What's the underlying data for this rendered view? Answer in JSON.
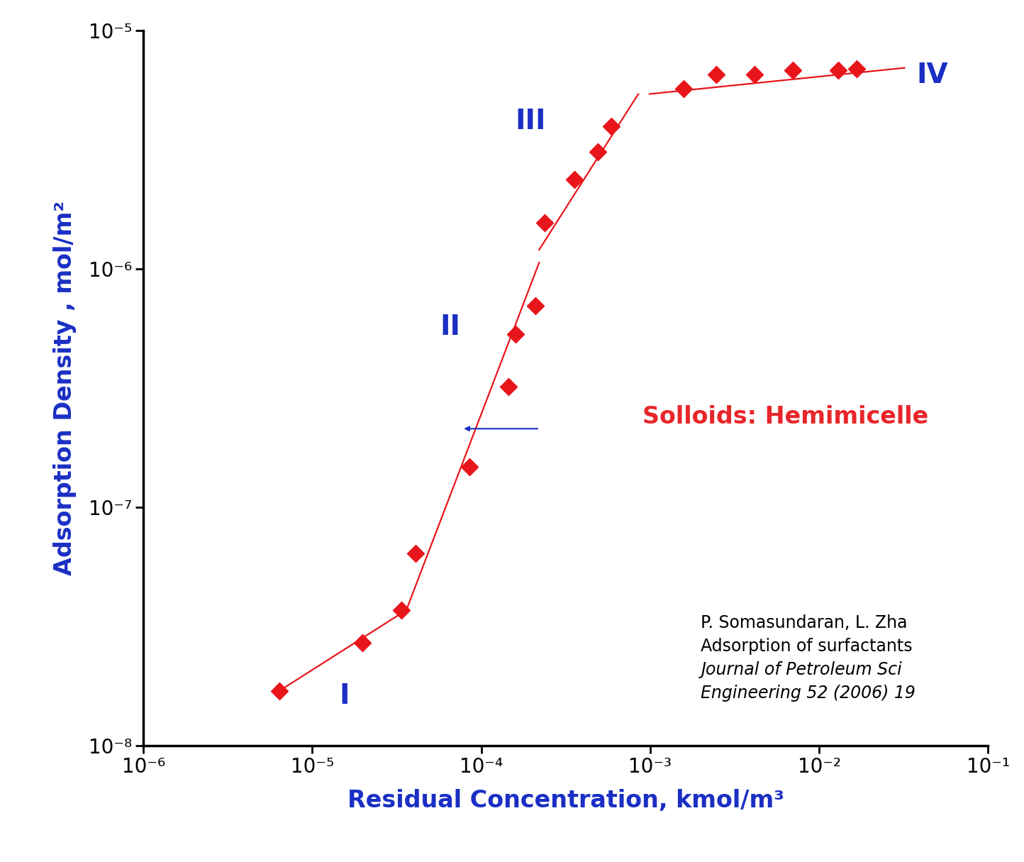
{
  "chart_data": {
    "type": "scatter",
    "x_label": "Residual Concentration, kmol/m³",
    "y_label": "Adsorption Density , mol/m²",
    "x": [
      6.4e-06,
      1.98e-05,
      3.36e-05,
      4.07e-05,
      8.5e-05,
      0.000145,
      0.000159,
      0.00021,
      0.000238,
      0.000355,
      0.00049,
      0.00059,
      0.00157,
      0.00245,
      0.00415,
      0.007,
      0.013,
      0.0166
    ],
    "values": [
      1.7e-08,
      2.7e-08,
      3.7e-08,
      6.4e-08,
      1.48e-07,
      3.2e-07,
      5.3e-07,
      7e-07,
      1.56e-06,
      2.37e-06,
      3.1e-06,
      3.94e-06,
      5.7e-06,
      6.5e-06,
      6.5e-06,
      6.8e-06,
      6.8e-06,
      6.9e-06
    ],
    "color": "#e8161b",
    "marker": "diamond",
    "log": true,
    "grid": false,
    "xlim": [
      1e-06,
      0.1
    ],
    "ylim": [
      1e-08,
      1e-05
    ],
    "xticks": [
      {
        "value": 1e-06,
        "label": "10⁻⁶"
      },
      {
        "value": 1e-05,
        "label": "10⁻⁵"
      },
      {
        "value": 0.0001,
        "label": "10⁻⁴"
      },
      {
        "value": 0.001,
        "label": "10⁻³"
      },
      {
        "value": 0.01,
        "label": "10⁻²"
      },
      {
        "value": 0.1,
        "label": "10⁻¹"
      }
    ],
    "yticks": [
      {
        "value": 1e-08,
        "label": "10⁻⁸"
      },
      {
        "value": 1e-07,
        "label": "10⁻⁷"
      },
      {
        "value": 1e-06,
        "label": "10⁻⁶"
      },
      {
        "value": 1e-05,
        "label": "10⁻⁵"
      }
    ],
    "fit_lines": [
      {
        "x": [
          6.4e-06,
          3.6e-05
        ],
        "y": [
          1.7e-08,
          3.7e-08
        ]
      },
      {
        "x": [
          3.6e-05,
          0.00022
        ],
        "y": [
          3.7e-08,
          1.06e-06
        ]
      },
      {
        "x": [
          0.00022,
          0.00085
        ],
        "y": [
          1.2e-06,
          5.4e-06
        ]
      },
      {
        "x": [
          0.00099,
          0.032
        ],
        "y": [
          5.4e-06,
          6.95e-06
        ]
      }
    ],
    "annotations": {
      "regions": [
        "I",
        "II",
        "III",
        "IV"
      ],
      "note": "Solloids: Hemimicelle",
      "citation": [
        "P. Somasundaran, L. Zha",
        "Adsorption of surfactants",
        "Journal of Petroleum Sci",
        "Engineering 52 (2006) 19"
      ]
    }
  }
}
